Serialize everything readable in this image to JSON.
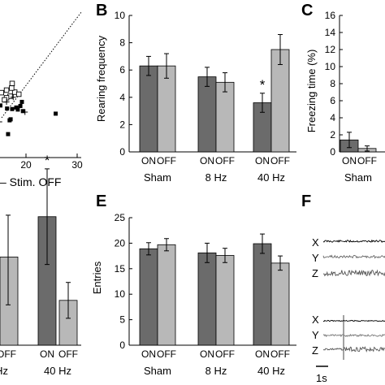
{
  "colors": {
    "on": "#6b6b6b",
    "off": "#b8b8b8",
    "axis": "#000000"
  },
  "chart_data": [
    {
      "id": "panelA",
      "type": "scatter",
      "xlabel": "– Stim. OFF",
      "xticks": [
        "20",
        "30"
      ],
      "xlim": [
        14,
        30
      ],
      "ylim": [
        0,
        30
      ],
      "series": [
        {
          "marker": "filled-square",
          "points": [
            [
              15.0,
              17.5
            ],
            [
              17.3,
              16.8
            ],
            [
              19.2,
              18.2
            ],
            [
              16.8,
              14.6
            ],
            [
              18.9,
              17.4
            ],
            [
              18.4,
              16.7
            ],
            [
              19.4,
              16.4
            ],
            [
              18.1,
              17.1
            ],
            [
              25.8,
              15.9
            ],
            [
              16.5,
              11.9
            ],
            [
              17.0,
              14.8
            ],
            [
              16.3,
              16.9
            ]
          ]
        },
        {
          "marker": "open-square",
          "points": [
            [
              15.2,
              20.0
            ],
            [
              16.2,
              20.5
            ],
            [
              17.3,
              21.8
            ],
            [
              17.8,
              20.1
            ],
            [
              18.6,
              19.7
            ],
            [
              17.2,
              20.9
            ],
            [
              16.9,
              19.3
            ],
            [
              16.2,
              19.0
            ],
            [
              15.8,
              18.6
            ]
          ]
        },
        {
          "marker": "plus",
          "points": [
            [
              17.5,
              19.1
            ],
            [
              19.8,
              16.2
            ],
            [
              16.2,
              18.2
            ],
            [
              14.8,
              14.3
            ]
          ]
        }
      ],
      "diagonal": "dotted identity line"
    },
    {
      "id": "panelB",
      "panel_label": "B",
      "type": "bar",
      "ylabel": "Rearing frequency",
      "ylim": [
        0,
        10
      ],
      "yticks": [
        0,
        2,
        4,
        6,
        8,
        10
      ],
      "groups": [
        "Sham",
        "8 Hz",
        "40 Hz"
      ],
      "bar_labels": [
        "ON",
        "OFF"
      ],
      "series": [
        {
          "name": "ON",
          "values": [
            6.3,
            5.5,
            3.6
          ],
          "errors": [
            0.7,
            0.7,
            0.7
          ]
        },
        {
          "name": "OFF",
          "values": [
            6.3,
            5.1,
            7.5
          ],
          "errors": [
            0.9,
            0.7,
            1.1
          ]
        }
      ],
      "annotations": [
        {
          "group": "40 Hz",
          "bar": "ON",
          "text": "*"
        }
      ]
    },
    {
      "id": "panelC",
      "panel_label": "C",
      "type": "bar",
      "ylabel": "Freezing time (%)",
      "ylim": [
        0,
        16
      ],
      "yticks": [
        0,
        2,
        4,
        6,
        8,
        10,
        12,
        14,
        16
      ],
      "groups": [
        "Sham"
      ],
      "bar_labels": [
        "ON",
        "OFF"
      ],
      "series": [
        {
          "name": "ON",
          "values": [
            1.4
          ],
          "errors": [
            0.9
          ]
        },
        {
          "name": "OFF",
          "values": [
            0.4
          ],
          "errors": [
            0.3
          ]
        }
      ]
    },
    {
      "id": "panelD",
      "type": "bar",
      "groups": [
        "40 Hz"
      ],
      "bar_labels": [
        "ON",
        "OFF"
      ],
      "series": [
        {
          "name": "ON",
          "values": [
            0.86
          ],
          "errors": [
            0.32
          ]
        },
        {
          "name": "OFF",
          "values": [
            0.3
          ],
          "errors": [
            0.12
          ]
        }
      ],
      "annotations": [
        {
          "group": "40 Hz",
          "bar": "ON",
          "text": "*"
        }
      ]
    },
    {
      "id": "panelE",
      "panel_label": "E",
      "type": "bar",
      "ylabel": "Entries",
      "ylim": [
        0,
        25
      ],
      "yticks": [
        0,
        5,
        10,
        15,
        20,
        25
      ],
      "groups": [
        "Sham",
        "8 Hz",
        "40 Hz"
      ],
      "bar_labels": [
        "ON",
        "OFF"
      ],
      "series": [
        {
          "name": "ON",
          "values": [
            18.9,
            18.1,
            19.9
          ],
          "errors": [
            1.2,
            1.9,
            1.9
          ]
        },
        {
          "name": "OFF",
          "values": [
            19.7,
            17.6,
            16.1
          ],
          "errors": [
            1.2,
            1.4,
            1.4
          ]
        }
      ]
    }
  ],
  "panelF": {
    "panel_label": "F",
    "channels": [
      "X",
      "Y",
      "Z"
    ],
    "scale_label": "1s"
  }
}
